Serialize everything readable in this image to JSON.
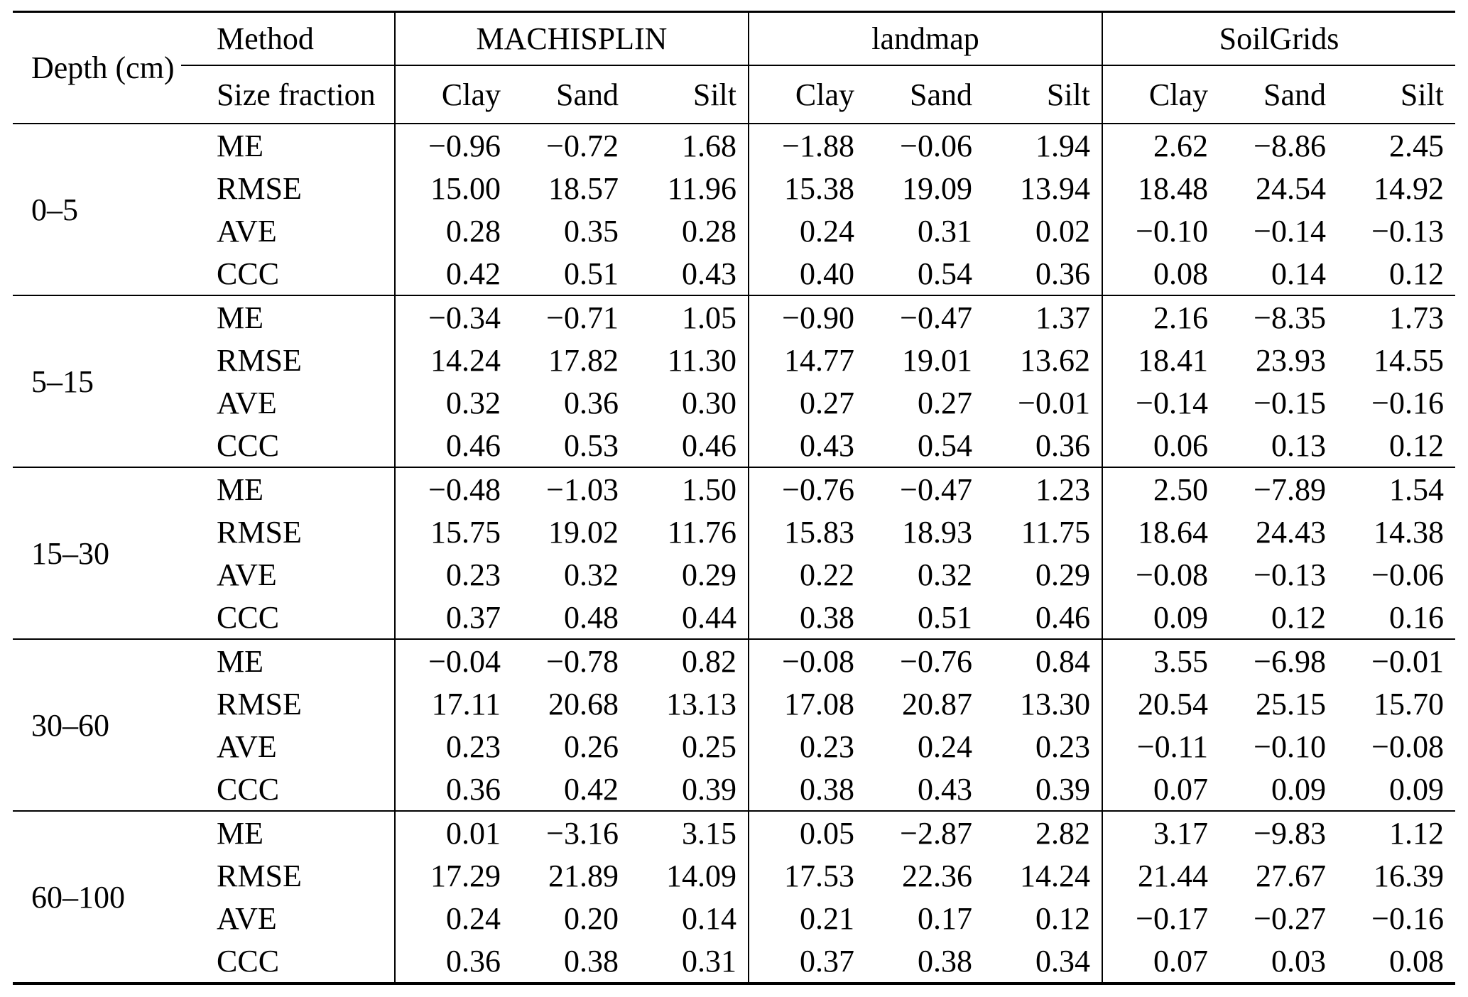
{
  "table": {
    "depth_header": "Depth (cm)",
    "header": {
      "method_label": "Method",
      "size_fraction_label": "Size fraction",
      "groups": [
        "MACHISPLIN",
        "landmap",
        "SoilGrids"
      ],
      "size_fractions": [
        "Clay",
        "Sand",
        "Silt"
      ]
    },
    "metrics": [
      "ME",
      "RMSE",
      "AVE",
      "CCC"
    ],
    "column_order": [
      "MACHISPLIN Clay",
      "MACHISPLIN Sand",
      "MACHISPLIN Silt",
      "landmap Clay",
      "landmap Sand",
      "landmap Silt",
      "SoilGrids Clay",
      "SoilGrids Sand",
      "SoilGrids Silt"
    ],
    "blocks": [
      {
        "depth": "0–5",
        "rows": [
          {
            "metric": "ME",
            "values": [
              "−0.96",
              "−0.72",
              "1.68",
              "−1.88",
              "−0.06",
              "1.94",
              "2.62",
              "−8.86",
              "2.45"
            ]
          },
          {
            "metric": "RMSE",
            "values": [
              "15.00",
              "18.57",
              "11.96",
              "15.38",
              "19.09",
              "13.94",
              "18.48",
              "24.54",
              "14.92"
            ]
          },
          {
            "metric": "AVE",
            "values": [
              "0.28",
              "0.35",
              "0.28",
              "0.24",
              "0.31",
              "0.02",
              "−0.10",
              "−0.14",
              "−0.13"
            ]
          },
          {
            "metric": "CCC",
            "values": [
              "0.42",
              "0.51",
              "0.43",
              "0.40",
              "0.54",
              "0.36",
              "0.08",
              "0.14",
              "0.12"
            ]
          }
        ]
      },
      {
        "depth": "5–15",
        "rows": [
          {
            "metric": "ME",
            "values": [
              "−0.34",
              "−0.71",
              "1.05",
              "−0.90",
              "−0.47",
              "1.37",
              "2.16",
              "−8.35",
              "1.73"
            ]
          },
          {
            "metric": "RMSE",
            "values": [
              "14.24",
              "17.82",
              "11.30",
              "14.77",
              "19.01",
              "13.62",
              "18.41",
              "23.93",
              "14.55"
            ]
          },
          {
            "metric": "AVE",
            "values": [
              "0.32",
              "0.36",
              "0.30",
              "0.27",
              "0.27",
              "−0.01",
              "−0.14",
              "−0.15",
              "−0.16"
            ]
          },
          {
            "metric": "CCC",
            "values": [
              "0.46",
              "0.53",
              "0.46",
              "0.43",
              "0.54",
              "0.36",
              "0.06",
              "0.13",
              "0.12"
            ]
          }
        ]
      },
      {
        "depth": "15–30",
        "rows": [
          {
            "metric": "ME",
            "values": [
              "−0.48",
              "−1.03",
              "1.50",
              "−0.76",
              "−0.47",
              "1.23",
              "2.50",
              "−7.89",
              "1.54"
            ]
          },
          {
            "metric": "RMSE",
            "values": [
              "15.75",
              "19.02",
              "11.76",
              "15.83",
              "18.93",
              "11.75",
              "18.64",
              "24.43",
              "14.38"
            ]
          },
          {
            "metric": "AVE",
            "values": [
              "0.23",
              "0.32",
              "0.29",
              "0.22",
              "0.32",
              "0.29",
              "−0.08",
              "−0.13",
              "−0.06"
            ]
          },
          {
            "metric": "CCC",
            "values": [
              "0.37",
              "0.48",
              "0.44",
              "0.38",
              "0.51",
              "0.46",
              "0.09",
              "0.12",
              "0.16"
            ]
          }
        ]
      },
      {
        "depth": "30–60",
        "rows": [
          {
            "metric": "ME",
            "values": [
              "−0.04",
              "−0.78",
              "0.82",
              "−0.08",
              "−0.76",
              "0.84",
              "3.55",
              "−6.98",
              "−0.01"
            ]
          },
          {
            "metric": "RMSE",
            "values": [
              "17.11",
              "20.68",
              "13.13",
              "17.08",
              "20.87",
              "13.30",
              "20.54",
              "25.15",
              "15.70"
            ]
          },
          {
            "metric": "AVE",
            "values": [
              "0.23",
              "0.26",
              "0.25",
              "0.23",
              "0.24",
              "0.23",
              "−0.11",
              "−0.10",
              "−0.08"
            ]
          },
          {
            "metric": "CCC",
            "values": [
              "0.36",
              "0.42",
              "0.39",
              "0.38",
              "0.43",
              "0.39",
              "0.07",
              "0.09",
              "0.09"
            ]
          }
        ]
      },
      {
        "depth": "60–100",
        "rows": [
          {
            "metric": "ME",
            "values": [
              "0.01",
              "−3.16",
              "3.15",
              "0.05",
              "−2.87",
              "2.82",
              "3.17",
              "−9.83",
              "1.12"
            ]
          },
          {
            "metric": "RMSE",
            "values": [
              "17.29",
              "21.89",
              "14.09",
              "17.53",
              "22.36",
              "14.24",
              "21.44",
              "27.67",
              "16.39"
            ]
          },
          {
            "metric": "AVE",
            "values": [
              "0.24",
              "0.20",
              "0.14",
              "0.21",
              "0.17",
              "0.12",
              "−0.17",
              "−0.27",
              "−0.16"
            ]
          },
          {
            "metric": "CCC",
            "values": [
              "0.36",
              "0.38",
              "0.31",
              "0.37",
              "0.38",
              "0.34",
              "0.07",
              "0.03",
              "0.08"
            ]
          }
        ]
      }
    ]
  }
}
